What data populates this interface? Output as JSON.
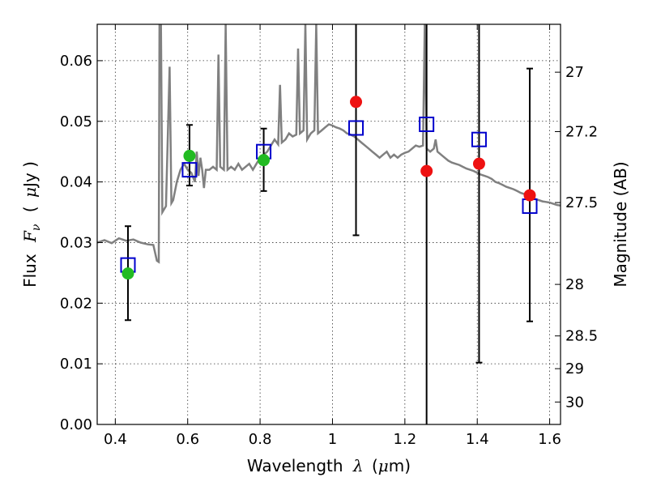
{
  "chart_data": {
    "type": "scatter",
    "xlabel_text": "Wavelength",
    "xlabel_math": "λ",
    "xlabel_unit_open": "(",
    "xlabel_unit_mu": "μ",
    "xlabel_unit_rest": "m)",
    "ylabel_text": "Flux",
    "ylabel_math_F": "F",
    "ylabel_math_nu": "ν",
    "ylabel_unit_open": "(",
    "ylabel_unit_mu": "μ",
    "ylabel_unit_rest": "Jy )",
    "y2label": "Magnitude (AB)",
    "xlim": [
      0.35,
      1.63
    ],
    "ylim": [
      0.0,
      0.066
    ],
    "x_ticks": [
      0.4,
      0.6,
      0.8,
      1.0,
      1.2,
      1.4,
      1.6
    ],
    "x_tick_labels": [
      "0.4",
      "0.6",
      "0.8",
      "1",
      "1.2",
      "1.4",
      "1.6"
    ],
    "y_ticks": [
      0.0,
      0.01,
      0.02,
      0.03,
      0.04,
      0.05,
      0.06
    ],
    "y_tick_labels": [
      "0.00",
      "0.01",
      "0.02",
      "0.03",
      "0.04",
      "0.05",
      "0.06"
    ],
    "y2_ticks": [
      {
        "label": "27",
        "flux": 0.0581
      },
      {
        "label": "27.2",
        "flux": 0.0483
      },
      {
        "label": "27.5",
        "flux": 0.0366
      },
      {
        "label": "28",
        "flux": 0.0231
      },
      {
        "label": "28.5",
        "flux": 0.0146
      },
      {
        "label": "29",
        "flux": 0.0092
      },
      {
        "label": "30",
        "flux": 0.0037
      }
    ],
    "grid": true,
    "colors": {
      "model": "#808080",
      "green_points": "#22bb22",
      "red_points": "#ee1111",
      "model_squares": "#0000cc",
      "errorbars": "#000000"
    },
    "model_spectrum": [
      [
        0.35,
        0.03
      ],
      [
        0.37,
        0.0304
      ],
      [
        0.39,
        0.0299
      ],
      [
        0.41,
        0.0307
      ],
      [
        0.43,
        0.0303
      ],
      [
        0.45,
        0.0305
      ],
      [
        0.47,
        0.03
      ],
      [
        0.49,
        0.0297
      ],
      [
        0.505,
        0.0296
      ],
      [
        0.515,
        0.027
      ],
      [
        0.52,
        0.0268
      ],
      [
        0.522,
        0.066
      ],
      [
        0.526,
        0.066
      ],
      [
        0.53,
        0.035
      ],
      [
        0.54,
        0.036
      ],
      [
        0.55,
        0.059
      ],
      [
        0.555,
        0.0365
      ],
      [
        0.56,
        0.037
      ],
      [
        0.57,
        0.04
      ],
      [
        0.58,
        0.042
      ],
      [
        0.59,
        0.043
      ],
      [
        0.6,
        0.042
      ],
      [
        0.61,
        0.0415
      ],
      [
        0.62,
        0.04
      ],
      [
        0.625,
        0.045
      ],
      [
        0.63,
        0.041
      ],
      [
        0.635,
        0.044
      ],
      [
        0.64,
        0.042
      ],
      [
        0.645,
        0.039
      ],
      [
        0.65,
        0.042
      ],
      [
        0.66,
        0.042
      ],
      [
        0.67,
        0.0425
      ],
      [
        0.68,
        0.042
      ],
      [
        0.685,
        0.061
      ],
      [
        0.69,
        0.0425
      ],
      [
        0.7,
        0.042
      ],
      [
        0.705,
        0.066
      ],
      [
        0.71,
        0.042
      ],
      [
        0.72,
        0.0425
      ],
      [
        0.73,
        0.042
      ],
      [
        0.74,
        0.043
      ],
      [
        0.75,
        0.042
      ],
      [
        0.76,
        0.0425
      ],
      [
        0.77,
        0.043
      ],
      [
        0.78,
        0.042
      ],
      [
        0.79,
        0.043
      ],
      [
        0.8,
        0.044
      ],
      [
        0.81,
        0.0445
      ],
      [
        0.82,
        0.045
      ],
      [
        0.83,
        0.046
      ],
      [
        0.84,
        0.047
      ],
      [
        0.85,
        0.0462
      ],
      [
        0.855,
        0.056
      ],
      [
        0.86,
        0.0465
      ],
      [
        0.87,
        0.047
      ],
      [
        0.88,
        0.048
      ],
      [
        0.89,
        0.0475
      ],
      [
        0.9,
        0.0478
      ],
      [
        0.905,
        0.062
      ],
      [
        0.91,
        0.048
      ],
      [
        0.92,
        0.0485
      ],
      [
        0.925,
        0.066
      ],
      [
        0.93,
        0.047
      ],
      [
        0.94,
        0.048
      ],
      [
        0.95,
        0.0485
      ],
      [
        0.955,
        0.066
      ],
      [
        0.96,
        0.048
      ],
      [
        0.97,
        0.0485
      ],
      [
        0.98,
        0.049
      ],
      [
        0.99,
        0.0495
      ],
      [
        1.0,
        0.0493
      ],
      [
        1.01,
        0.049
      ],
      [
        1.02,
        0.0488
      ],
      [
        1.03,
        0.0485
      ],
      [
        1.04,
        0.048
      ],
      [
        1.05,
        0.0478
      ],
      [
        1.06,
        0.0475
      ],
      [
        1.07,
        0.047
      ],
      [
        1.08,
        0.0465
      ],
      [
        1.09,
        0.046
      ],
      [
        1.1,
        0.0455
      ],
      [
        1.11,
        0.045
      ],
      [
        1.12,
        0.0445
      ],
      [
        1.13,
        0.044
      ],
      [
        1.14,
        0.0445
      ],
      [
        1.15,
        0.045
      ],
      [
        1.16,
        0.044
      ],
      [
        1.17,
        0.0445
      ],
      [
        1.18,
        0.044
      ],
      [
        1.19,
        0.0445
      ],
      [
        1.2,
        0.0448
      ],
      [
        1.21,
        0.045
      ],
      [
        1.22,
        0.0455
      ],
      [
        1.23,
        0.046
      ],
      [
        1.24,
        0.0458
      ],
      [
        1.25,
        0.046
      ],
      [
        1.255,
        0.066
      ],
      [
        1.26,
        0.0455
      ],
      [
        1.27,
        0.045
      ],
      [
        1.28,
        0.0455
      ],
      [
        1.285,
        0.047
      ],
      [
        1.29,
        0.045
      ],
      [
        1.3,
        0.0445
      ],
      [
        1.31,
        0.044
      ],
      [
        1.32,
        0.0435
      ],
      [
        1.33,
        0.0432
      ],
      [
        1.34,
        0.043
      ],
      [
        1.35,
        0.0428
      ],
      [
        1.36,
        0.0425
      ],
      [
        1.37,
        0.0422
      ],
      [
        1.38,
        0.042
      ],
      [
        1.39,
        0.0418
      ],
      [
        1.4,
        0.0415
      ],
      [
        1.41,
        0.0412
      ],
      [
        1.42,
        0.041
      ],
      [
        1.43,
        0.0408
      ],
      [
        1.44,
        0.0405
      ],
      [
        1.45,
        0.04
      ],
      [
        1.46,
        0.0398
      ],
      [
        1.47,
        0.0395
      ],
      [
        1.48,
        0.0392
      ],
      [
        1.49,
        0.039
      ],
      [
        1.5,
        0.0388
      ],
      [
        1.51,
        0.0385
      ],
      [
        1.52,
        0.0382
      ],
      [
        1.53,
        0.038
      ],
      [
        1.54,
        0.0378
      ],
      [
        1.55,
        0.0375
      ],
      [
        1.56,
        0.0372
      ],
      [
        1.57,
        0.037
      ],
      [
        1.58,
        0.0368
      ],
      [
        1.59,
        0.0367
      ],
      [
        1.6,
        0.0366
      ],
      [
        1.61,
        0.0364
      ],
      [
        1.62,
        0.0362
      ],
      [
        1.63,
        0.0361
      ]
    ],
    "green_points": [
      {
        "x": 0.435,
        "y": 0.0249
      },
      {
        "x": 0.605,
        "y": 0.0443
      },
      {
        "x": 0.81,
        "y": 0.0436
      }
    ],
    "red_points": [
      {
        "x": 1.065,
        "y": 0.0532
      },
      {
        "x": 1.26,
        "y": 0.0418
      },
      {
        "x": 1.405,
        "y": 0.043
      },
      {
        "x": 1.545,
        "y": 0.0378
      }
    ],
    "model_squares": [
      {
        "x": 0.435,
        "y": 0.0263
      },
      {
        "x": 0.605,
        "y": 0.042
      },
      {
        "x": 0.81,
        "y": 0.045
      },
      {
        "x": 1.065,
        "y": 0.0489
      },
      {
        "x": 1.26,
        "y": 0.0495
      },
      {
        "x": 1.405,
        "y": 0.047
      },
      {
        "x": 1.545,
        "y": 0.036
      }
    ],
    "errorbars": [
      {
        "x": 0.435,
        "y_low": 0.0172,
        "y_high": 0.0327,
        "capped_low": true,
        "capped_high": true
      },
      {
        "x": 0.605,
        "y_low": 0.0394,
        "y_high": 0.0494,
        "capped_low": true,
        "capped_high": true
      },
      {
        "x": 0.81,
        "y_low": 0.0385,
        "y_high": 0.0488,
        "capped_low": true,
        "capped_high": true
      },
      {
        "x": 1.065,
        "y_low": 0.0312,
        "y_high": 0.066,
        "capped_low": true,
        "capped_high": false
      },
      {
        "x": 1.26,
        "y_low": 0.0,
        "y_high": 0.066,
        "capped_low": false,
        "capped_high": false
      },
      {
        "x": 1.405,
        "y_low": 0.0102,
        "y_high": 0.066,
        "capped_low": true,
        "capped_high": false
      },
      {
        "x": 1.545,
        "y_low": 0.017,
        "y_high": 0.0587,
        "capped_low": true,
        "capped_high": true
      }
    ]
  }
}
